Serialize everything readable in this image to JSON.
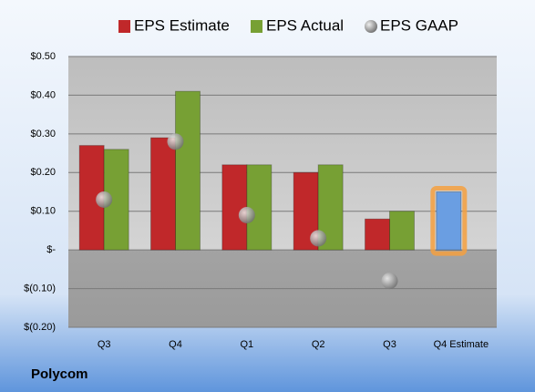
{
  "chart_data": {
    "type": "bar",
    "footer": "Polycom",
    "categories": [
      "Q3",
      "Q4",
      "Q1",
      "Q2",
      "Q3",
      "Q4 Estimate"
    ],
    "series": [
      {
        "name": "EPS Estimate",
        "color": "#c0282a",
        "values": [
          0.27,
          0.29,
          0.22,
          0.2,
          0.08,
          0.15
        ]
      },
      {
        "name": "EPS Actual",
        "color": "#77a034",
        "values": [
          0.26,
          0.41,
          0.22,
          0.22,
          0.1,
          null
        ]
      },
      {
        "name": "EPS GAAP",
        "color": "#9a9a9a",
        "kind": "scatter",
        "values": [
          0.13,
          0.28,
          0.09,
          0.03,
          -0.08,
          null
        ]
      }
    ],
    "highlight": {
      "series": 0,
      "index": 5,
      "color": "#6a9ee2",
      "glow": "#f5a040"
    },
    "ylim": [
      -0.2,
      0.5
    ],
    "yticks": [
      {
        "value": -0.2,
        "label": "$(0.20)"
      },
      {
        "value": -0.1,
        "label": "$(0.10)"
      },
      {
        "value": 0,
        "label": "$-"
      },
      {
        "value": 0.1,
        "label": "$0.10"
      },
      {
        "value": 0.2,
        "label": "$0.20"
      },
      {
        "value": 0.3,
        "label": "$0.30"
      },
      {
        "value": 0.4,
        "label": "$0.40"
      },
      {
        "value": 0.5,
        "label": "$0.50"
      }
    ],
    "grid": true,
    "legend": "top"
  }
}
